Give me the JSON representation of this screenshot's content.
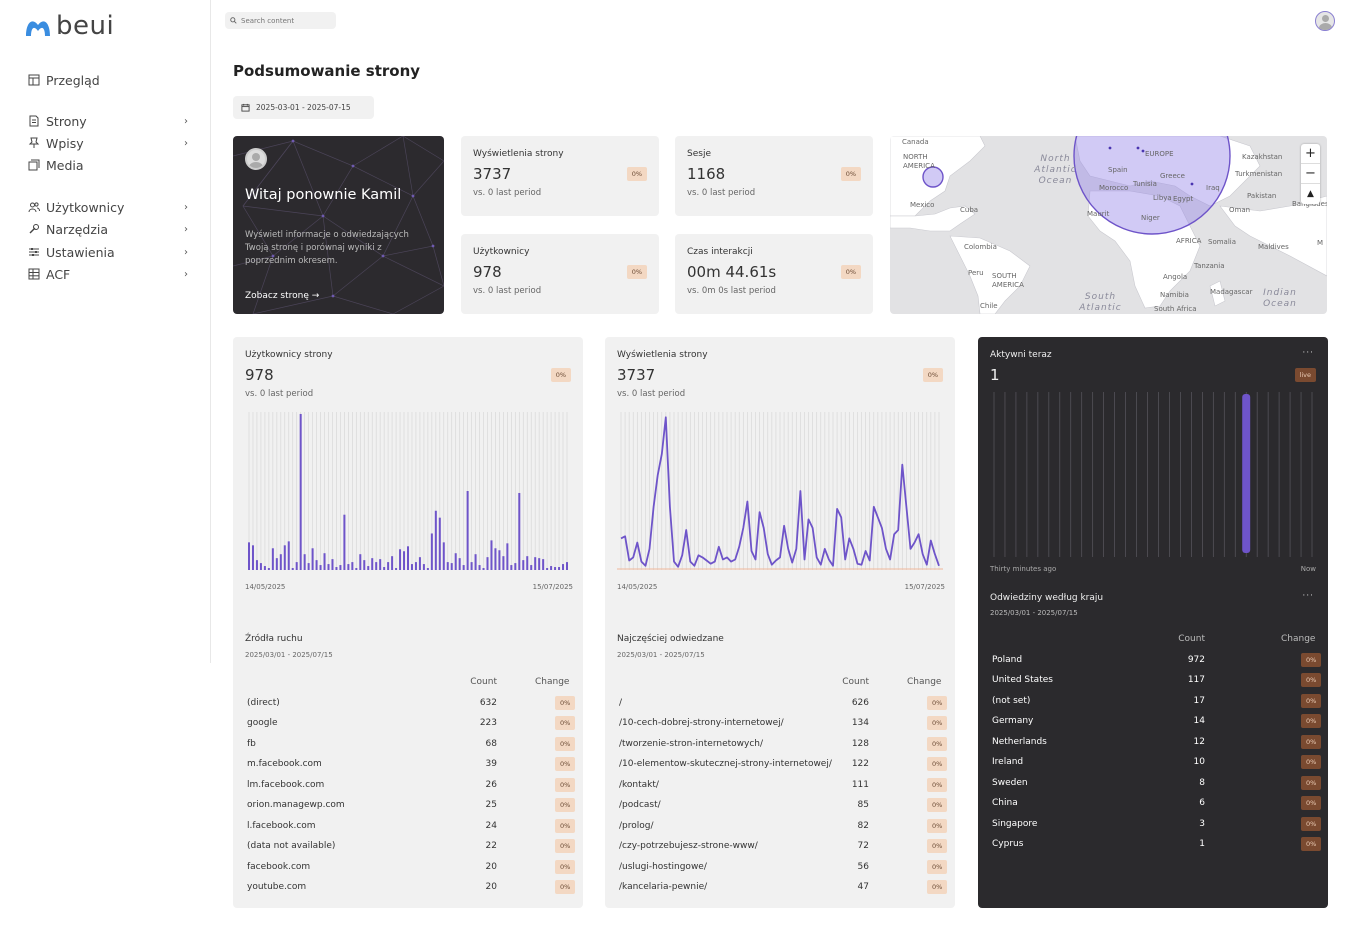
{
  "brand": {
    "name": "beui"
  },
  "sidebar": {
    "items": [
      {
        "label": "Przegląd",
        "icon": "layout-icon",
        "chevron": false
      },
      {
        "label": "Strony",
        "icon": "page-icon",
        "chevron": true
      },
      {
        "label": "Wpisy",
        "icon": "pin-icon",
        "chevron": true
      },
      {
        "label": "Media",
        "icon": "media-icon",
        "chevron": false
      },
      {
        "label": "Użytkownicy",
        "icon": "users-icon",
        "chevron": true
      },
      {
        "label": "Narzędzia",
        "icon": "tools-icon",
        "chevron": true
      },
      {
        "label": "Ustawienia",
        "icon": "settings-icon",
        "chevron": true
      },
      {
        "label": "ACF",
        "icon": "grid-icon",
        "chevron": true
      }
    ]
  },
  "search": {
    "placeholder": "Search content"
  },
  "page": {
    "title": "Podsumowanie strony",
    "date_range": "2025-03-01 - 2025-07-15"
  },
  "welcome": {
    "title": "Witaj ponownie Kamil",
    "description": "Wyświetl informacje o odwiedzających Twoją stronę i porównaj wyniki z poprzednim okresem.",
    "link": "Zobacz stronę →"
  },
  "stats": [
    {
      "label": "Wyświetlenia strony",
      "value": "3737",
      "badge": "0%",
      "sub": "vs. 0 last period"
    },
    {
      "label": "Sesje",
      "value": "1168",
      "badge": "0%",
      "sub": "vs. 0 last period"
    },
    {
      "label": "Użytkownicy",
      "value": "978",
      "badge": "0%",
      "sub": "vs. 0 last period"
    },
    {
      "label": "Czas interakcji",
      "value": "00m 44.61s",
      "badge": "0%",
      "sub": "vs. 0m 0s last period"
    }
  ],
  "map": {
    "labels": {
      "canada": "Canada",
      "north_america": "NORTH AMERICA",
      "mexico": "Mexico",
      "cuba": "Cuba",
      "colombia": "Colombia",
      "peru": "Peru",
      "south_america": "SOUTH AMERICA",
      "chile": "Chile",
      "europe": "EUROPE",
      "spain": "Spain",
      "greece": "Greece",
      "morocco": "Morocco",
      "tunisia": "Tunisia",
      "libya": "Libya",
      "egypt": "Egypt",
      "iraq": "Iraq",
      "kazakhstan": "Kazakhstan",
      "turkmenistan": "Turkmenistan",
      "pakistan": "Pakistan",
      "oman": "Oman",
      "bangladesh": "Banglades",
      "mauritania": "Maurit",
      "niger": "Niger",
      "africa": "AFRICA",
      "somalia": "Somalia",
      "maldives": "Maldives",
      "tanzania": "Tanzania",
      "angola": "Angola",
      "namibia": "Namibia",
      "madagascar": "Madagascar",
      "south_africa": "South Africa",
      "north_atlantic": "North Atlantic Ocean",
      "south_atlantic": "South Atlantic",
      "indian_ocean": "Indian Ocean",
      "m": "M"
    },
    "controls": {
      "zoom_in": "+",
      "zoom_out": "−",
      "reset": "▲"
    }
  },
  "users_chart": {
    "title": "Użytkownicy strony",
    "value": "978",
    "badge": "0%",
    "sub": "vs. 0 last period",
    "x_start": "14/05/2025",
    "x_end": "15/07/2025"
  },
  "views_chart": {
    "title": "Wyświetlenia strony",
    "value": "3737",
    "badge": "0%",
    "sub": "vs. 0 last period",
    "x_start": "14/05/2025",
    "x_end": "15/07/2025"
  },
  "active_now": {
    "title": "Aktywni teraz",
    "value": "1",
    "badge": "live",
    "x_start": "Thirty minutes ago",
    "x_end": "Now",
    "menu": "···"
  },
  "chart_data": [
    {
      "type": "bar",
      "series": [
        {
          "values": [
            28,
            25,
            10,
            7,
            4,
            2,
            22,
            12,
            16,
            25,
            29,
            2,
            8,
            158,
            16,
            7,
            22,
            10,
            5,
            17,
            6,
            11,
            3,
            5,
            56,
            6,
            8,
            2,
            16,
            10,
            4,
            12,
            8,
            11,
            3,
            8,
            14,
            2,
            21,
            19,
            24,
            6,
            8,
            13,
            6,
            2,
            37,
            60,
            53,
            28,
            8,
            7,
            17,
            12,
            5,
            80,
            8,
            16,
            5,
            2,
            13,
            30,
            22,
            20,
            14,
            27,
            5,
            7,
            78,
            10,
            14,
            5,
            13,
            12,
            11,
            2,
            4,
            3,
            3,
            6,
            8
          ]
        }
      ],
      "xlabel": "",
      "ylabel": ""
    },
    {
      "type": "line",
      "series": [
        {
          "values": [
            30,
            32,
            9,
            12,
            26,
            8,
            4,
            20,
            60,
            90,
            110,
            145,
            60,
            8,
            3,
            14,
            38,
            8,
            4,
            14,
            12,
            9,
            6,
            8,
            22,
            10,
            12,
            8,
            10,
            22,
            40,
            65,
            18,
            10,
            55,
            40,
            15,
            5,
            9,
            12,
            42,
            20,
            7,
            20,
            75,
            10,
            48,
            40,
            12,
            5,
            20,
            10,
            4,
            58,
            50,
            10,
            30,
            20,
            6,
            5,
            18,
            9,
            60,
            50,
            40,
            20,
            10,
            34,
            38,
            100,
            60,
            20,
            26,
            34,
            15,
            5,
            28,
            15,
            4
          ]
        }
      ],
      "xlabel": "",
      "ylabel": ""
    },
    {
      "type": "bar",
      "series": [
        {
          "values": [
            0,
            0,
            0,
            0,
            0,
            0,
            0,
            0,
            0,
            0,
            0,
            0,
            0,
            0,
            0,
            0,
            0,
            0,
            0,
            0,
            0,
            0,
            0,
            1,
            0,
            0,
            0,
            0,
            0,
            0
          ]
        }
      ],
      "xlabel": "",
      "ylabel": ""
    }
  ],
  "sources": {
    "title": "Źródła ruchu",
    "sub": "2025/03/01 - 2025/07/15",
    "headers": {
      "count": "Count",
      "change": "Change"
    },
    "rows": [
      {
        "name": "(direct)",
        "count": "632",
        "change": "0%"
      },
      {
        "name": "google",
        "count": "223",
        "change": "0%"
      },
      {
        "name": "fb",
        "count": "68",
        "change": "0%"
      },
      {
        "name": "m.facebook.com",
        "count": "39",
        "change": "0%"
      },
      {
        "name": "lm.facebook.com",
        "count": "26",
        "change": "0%"
      },
      {
        "name": "orion.managewp.com",
        "count": "25",
        "change": "0%"
      },
      {
        "name": "l.facebook.com",
        "count": "24",
        "change": "0%"
      },
      {
        "name": "(data not available)",
        "count": "22",
        "change": "0%"
      },
      {
        "name": "facebook.com",
        "count": "20",
        "change": "0%"
      },
      {
        "name": "youtube.com",
        "count": "20",
        "change": "0%"
      }
    ]
  },
  "pages": {
    "title": "Najczęściej odwiedzane",
    "sub": "2025/03/01 - 2025/07/15",
    "headers": {
      "count": "Count",
      "change": "Change"
    },
    "rows": [
      {
        "name": "/",
        "count": "626",
        "change": "0%"
      },
      {
        "name": "/10-cech-dobrej-strony-internetowej/",
        "count": "134",
        "change": "0%"
      },
      {
        "name": "/tworzenie-stron-internetowych/",
        "count": "128",
        "change": "0%"
      },
      {
        "name": "/10-elementow-skutecznej-strony-internetowej/",
        "count": "122",
        "change": "0%"
      },
      {
        "name": "/kontakt/",
        "count": "111",
        "change": "0%"
      },
      {
        "name": "/podcast/",
        "count": "85",
        "change": "0%"
      },
      {
        "name": "/prolog/",
        "count": "82",
        "change": "0%"
      },
      {
        "name": "/czy-potrzebujesz-strone-www/",
        "count": "72",
        "change": "0%"
      },
      {
        "name": "/uslugi-hostingowe/",
        "count": "56",
        "change": "0%"
      },
      {
        "name": "/kancelaria-pewnie/",
        "count": "47",
        "change": "0%"
      }
    ]
  },
  "countries": {
    "title": "Odwiedziny według kraju",
    "sub": "2025/03/01 - 2025/07/15",
    "menu": "···",
    "headers": {
      "count": "Count",
      "change": "Change"
    },
    "rows": [
      {
        "name": "Poland",
        "count": "972",
        "change": "0%"
      },
      {
        "name": "United States",
        "count": "117",
        "change": "0%"
      },
      {
        "name": "(not set)",
        "count": "17",
        "change": "0%"
      },
      {
        "name": "Germany",
        "count": "14",
        "change": "0%"
      },
      {
        "name": "Netherlands",
        "count": "12",
        "change": "0%"
      },
      {
        "name": "Ireland",
        "count": "10",
        "change": "0%"
      },
      {
        "name": "Sweden",
        "count": "8",
        "change": "0%"
      },
      {
        "name": "China",
        "count": "6",
        "change": "0%"
      },
      {
        "name": "Singapore",
        "count": "3",
        "change": "0%"
      },
      {
        "name": "Cyprus",
        "count": "1",
        "change": "0%"
      }
    ]
  },
  "colors": {
    "accent": "#6e54c9",
    "badge_bg": "#f3d8c3",
    "dark_panel": "#2b2a2d"
  }
}
